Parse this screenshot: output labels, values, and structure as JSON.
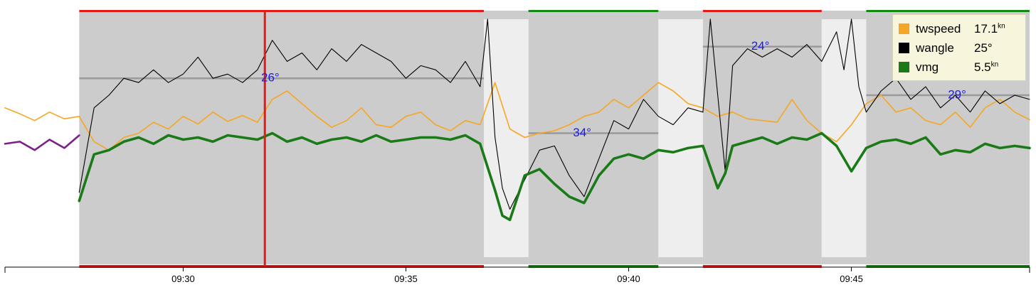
{
  "chart_data": {
    "type": "line",
    "x_axis": {
      "range": [
        "09:26:00",
        "09:49:00"
      ],
      "ticks": [
        "09:30",
        "09:35",
        "09:40",
        "09:45"
      ]
    },
    "grid": false,
    "legend_position": "top-right",
    "series": [
      {
        "name": "twspeed",
        "current_value": "17.1",
        "unit": "kn",
        "color": "#f5a623",
        "y_range": [
          0,
          30
        ],
        "points": [
          [
            "09:26:00",
            18.5
          ],
          [
            "09:26:20",
            17.8
          ],
          [
            "09:26:40",
            17.0
          ],
          [
            "09:27:00",
            18.0
          ],
          [
            "09:27:20",
            17.2
          ],
          [
            "09:27:40",
            17.5
          ],
          [
            "09:28:00",
            14.5
          ],
          [
            "09:28:20",
            13.5
          ],
          [
            "09:28:40",
            15.0
          ],
          [
            "09:29:00",
            15.5
          ],
          [
            "09:29:20",
            16.8
          ],
          [
            "09:29:40",
            16.0
          ],
          [
            "09:30:00",
            17.5
          ],
          [
            "09:30:20",
            16.6
          ],
          [
            "09:30:40",
            18.0
          ],
          [
            "09:31:00",
            16.9
          ],
          [
            "09:31:20",
            17.6
          ],
          [
            "09:31:40",
            16.8
          ],
          [
            "09:32:00",
            19.5
          ],
          [
            "09:32:20",
            20.5
          ],
          [
            "09:32:40",
            19.0
          ],
          [
            "09:33:00",
            17.5
          ],
          [
            "09:33:20",
            16.2
          ],
          [
            "09:33:40",
            17.0
          ],
          [
            "09:34:00",
            18.5
          ],
          [
            "09:34:20",
            16.5
          ],
          [
            "09:34:40",
            16.2
          ],
          [
            "09:35:00",
            17.5
          ],
          [
            "09:35:20",
            18.0
          ],
          [
            "09:35:40",
            16.5
          ],
          [
            "09:36:00",
            15.8
          ],
          [
            "09:36:20",
            17.0
          ],
          [
            "09:36:40",
            16.5
          ],
          [
            "09:37:00",
            21.5
          ],
          [
            "09:37:20",
            16.0
          ],
          [
            "09:37:40",
            15.0
          ],
          [
            "09:38:00",
            15.5
          ],
          [
            "09:38:20",
            15.8
          ],
          [
            "09:38:40",
            16.5
          ],
          [
            "09:39:00",
            17.5
          ],
          [
            "09:39:20",
            18.0
          ],
          [
            "09:39:40",
            19.5
          ],
          [
            "09:40:00",
            18.5
          ],
          [
            "09:40:20",
            20.0
          ],
          [
            "09:40:40",
            21.5
          ],
          [
            "09:41:00",
            20.5
          ],
          [
            "09:41:20",
            19.0
          ],
          [
            "09:41:40",
            18.5
          ],
          [
            "09:42:00",
            17.5
          ],
          [
            "09:42:20",
            18.0
          ],
          [
            "09:42:40",
            17.2
          ],
          [
            "09:43:00",
            17.0
          ],
          [
            "09:43:20",
            16.8
          ],
          [
            "09:43:40",
            19.5
          ],
          [
            "09:44:00",
            17.0
          ],
          [
            "09:44:20",
            15.5
          ],
          [
            "09:44:40",
            14.5
          ],
          [
            "09:45:00",
            16.5
          ],
          [
            "09:45:20",
            19.0
          ],
          [
            "09:45:40",
            20.0
          ],
          [
            "09:46:00",
            18.0
          ],
          [
            "09:46:20",
            18.5
          ],
          [
            "09:46:40",
            17.0
          ],
          [
            "09:47:00",
            16.5
          ],
          [
            "09:47:20",
            18.0
          ],
          [
            "09:47:40",
            16.2
          ],
          [
            "09:48:00",
            18.5
          ],
          [
            "09:48:20",
            19.5
          ],
          [
            "09:48:40",
            18.0
          ],
          [
            "09:49:00",
            17.1
          ]
        ]
      },
      {
        "name": "wangle",
        "current_value": "25°",
        "unit": "",
        "color": "#000000",
        "y_range": [
          0,
          60
        ],
        "points": [
          [
            "09:27:40",
            17.0
          ],
          [
            "09:28:00",
            37.0
          ],
          [
            "09:28:20",
            40.0
          ],
          [
            "09:28:40",
            44.0
          ],
          [
            "09:29:00",
            43.0
          ],
          [
            "09:29:20",
            46.0
          ],
          [
            "09:29:40",
            43.0
          ],
          [
            "09:30:00",
            45.0
          ],
          [
            "09:30:20",
            49.0
          ],
          [
            "09:30:40",
            44.0
          ],
          [
            "09:31:00",
            45.0
          ],
          [
            "09:31:20",
            43.0
          ],
          [
            "09:31:40",
            46.0
          ],
          [
            "09:32:00",
            53.0
          ],
          [
            "09:32:20",
            48.0
          ],
          [
            "09:32:40",
            50.0
          ],
          [
            "09:33:00",
            46.0
          ],
          [
            "09:33:20",
            51.0
          ],
          [
            "09:33:40",
            48.0
          ],
          [
            "09:34:00",
            52.0
          ],
          [
            "09:34:20",
            50.0
          ],
          [
            "09:34:40",
            48.0
          ],
          [
            "09:35:00",
            44.0
          ],
          [
            "09:35:20",
            47.0
          ],
          [
            "09:35:40",
            46.0
          ],
          [
            "09:36:00",
            43.0
          ],
          [
            "09:36:20",
            48.0
          ],
          [
            "09:36:40",
            42.0
          ],
          [
            "09:36:50",
            58.0
          ],
          [
            "09:37:00",
            30.0
          ],
          [
            "09:37:10",
            18.0
          ],
          [
            "09:37:20",
            13.0
          ],
          [
            "09:37:40",
            20.0
          ],
          [
            "09:38:00",
            27.0
          ],
          [
            "09:38:20",
            28.0
          ],
          [
            "09:38:40",
            21.0
          ],
          [
            "09:39:00",
            16.0
          ],
          [
            "09:39:20",
            25.0
          ],
          [
            "09:39:40",
            34.0
          ],
          [
            "09:40:00",
            32.0
          ],
          [
            "09:40:20",
            39.0
          ],
          [
            "09:40:40",
            35.0
          ],
          [
            "09:41:00",
            33.0
          ],
          [
            "09:41:20",
            37.0
          ],
          [
            "09:41:40",
            36.0
          ],
          [
            "09:41:50",
            58.0
          ],
          [
            "09:42:00",
            40.0
          ],
          [
            "09:42:10",
            22.0
          ],
          [
            "09:42:20",
            47.0
          ],
          [
            "09:42:40",
            51.0
          ],
          [
            "09:43:00",
            49.0
          ],
          [
            "09:43:20",
            51.0
          ],
          [
            "09:43:40",
            49.0
          ],
          [
            "09:44:00",
            52.0
          ],
          [
            "09:44:20",
            48.0
          ],
          [
            "09:44:40",
            55.0
          ],
          [
            "09:44:50",
            46.0
          ],
          [
            "09:45:00",
            58.0
          ],
          [
            "09:45:10",
            42.0
          ],
          [
            "09:45:20",
            36.0
          ],
          [
            "09:45:40",
            41.0
          ],
          [
            "09:46:00",
            44.0
          ],
          [
            "09:46:20",
            39.0
          ],
          [
            "09:46:40",
            42.0
          ],
          [
            "09:47:00",
            37.0
          ],
          [
            "09:47:20",
            40.0
          ],
          [
            "09:47:40",
            36.0
          ],
          [
            "09:48:00",
            41.0
          ],
          [
            "09:48:20",
            38.0
          ],
          [
            "09:48:40",
            40.0
          ],
          [
            "09:49:00",
            39.0
          ]
        ]
      },
      {
        "name": "vmg",
        "current_value": "5.5",
        "unit": "kn",
        "color": "#1a7a17",
        "y_range": [
          0,
          12
        ],
        "points": [
          [
            "09:27:40",
            3.0
          ],
          [
            "09:28:00",
            5.2
          ],
          [
            "09:28:20",
            5.4
          ],
          [
            "09:28:40",
            5.8
          ],
          [
            "09:29:00",
            6.0
          ],
          [
            "09:29:20",
            5.7
          ],
          [
            "09:29:40",
            6.1
          ],
          [
            "09:30:00",
            5.9
          ],
          [
            "09:30:20",
            6.0
          ],
          [
            "09:30:40",
            5.8
          ],
          [
            "09:31:00",
            6.1
          ],
          [
            "09:31:20",
            6.0
          ],
          [
            "09:31:40",
            5.9
          ],
          [
            "09:32:00",
            6.2
          ],
          [
            "09:32:20",
            5.8
          ],
          [
            "09:32:40",
            6.0
          ],
          [
            "09:33:00",
            5.7
          ],
          [
            "09:33:20",
            5.9
          ],
          [
            "09:33:40",
            6.0
          ],
          [
            "09:34:00",
            5.8
          ],
          [
            "09:34:20",
            6.1
          ],
          [
            "09:34:40",
            5.8
          ],
          [
            "09:35:00",
            5.9
          ],
          [
            "09:35:20",
            6.0
          ],
          [
            "09:35:40",
            6.0
          ],
          [
            "09:36:00",
            5.9
          ],
          [
            "09:36:20",
            6.1
          ],
          [
            "09:36:40",
            5.7
          ],
          [
            "09:37:00",
            3.5
          ],
          [
            "09:37:10",
            2.3
          ],
          [
            "09:37:20",
            2.1
          ],
          [
            "09:37:40",
            4.2
          ],
          [
            "09:38:00",
            4.5
          ],
          [
            "09:38:20",
            3.8
          ],
          [
            "09:38:40",
            3.2
          ],
          [
            "09:39:00",
            2.9
          ],
          [
            "09:39:20",
            4.2
          ],
          [
            "09:39:40",
            5.0
          ],
          [
            "09:40:00",
            5.2
          ],
          [
            "09:40:20",
            5.0
          ],
          [
            "09:40:40",
            5.4
          ],
          [
            "09:41:00",
            5.3
          ],
          [
            "09:41:20",
            5.5
          ],
          [
            "09:41:40",
            5.6
          ],
          [
            "09:42:00",
            3.6
          ],
          [
            "09:42:10",
            4.3
          ],
          [
            "09:42:20",
            5.6
          ],
          [
            "09:42:40",
            5.8
          ],
          [
            "09:43:00",
            6.0
          ],
          [
            "09:43:20",
            5.7
          ],
          [
            "09:43:40",
            6.0
          ],
          [
            "09:44:00",
            5.9
          ],
          [
            "09:44:20",
            6.2
          ],
          [
            "09:44:40",
            5.6
          ],
          [
            "09:45:00",
            4.4
          ],
          [
            "09:45:20",
            5.5
          ],
          [
            "09:45:40",
            5.8
          ],
          [
            "09:46:00",
            5.9
          ],
          [
            "09:46:20",
            5.7
          ],
          [
            "09:46:40",
            6.0
          ],
          [
            "09:47:00",
            5.2
          ],
          [
            "09:47:20",
            5.4
          ],
          [
            "09:47:40",
            5.3
          ],
          [
            "09:48:00",
            5.7
          ],
          [
            "09:48:20",
            5.5
          ],
          [
            "09:48:40",
            5.6
          ],
          [
            "09:49:00",
            5.5
          ]
        ]
      },
      {
        "name": "",
        "color": "#7d1f8a",
        "y_range": [
          0,
          12
        ],
        "points": [
          [
            "09:26:00",
            5.7
          ],
          [
            "09:26:20",
            5.8
          ],
          [
            "09:26:40",
            5.4
          ],
          [
            "09:27:00",
            5.9
          ],
          [
            "09:27:20",
            5.5
          ],
          [
            "09:27:40",
            6.1
          ]
        ]
      }
    ],
    "legs": [
      {
        "start": "09:27:40",
        "end": "09:36:45",
        "tack": "port",
        "bar_color": "#e31a1c"
      },
      {
        "start": "09:37:45",
        "end": "09:40:40",
        "tack": "starboard",
        "bar_color": "#128a12"
      },
      {
        "start": "09:41:40",
        "end": "09:44:20",
        "tack": "port",
        "bar_color": "#e31a1c"
      },
      {
        "start": "09:45:20",
        "end": "09:49:00",
        "tack": "starboard",
        "bar_color": "#128a12"
      }
    ],
    "maneuvers": [
      {
        "start": "09:36:45",
        "end": "09:37:45"
      },
      {
        "start": "09:40:40",
        "end": "09:41:40"
      },
      {
        "start": "09:44:20",
        "end": "09:45:20"
      }
    ],
    "average_angles": [
      {
        "label": "26°",
        "value": 44.0,
        "start": "09:27:40",
        "end": "09:36:45",
        "label_time": "09:31:45"
      },
      {
        "label": "34°",
        "value": 31.0,
        "start": "09:37:45",
        "end": "09:40:40",
        "label_time": "09:38:45"
      },
      {
        "label": "24°",
        "value": 51.5,
        "start": "09:41:40",
        "end": "09:44:20",
        "label_time": "09:42:45"
      },
      {
        "label": "29°",
        "value": 40.0,
        "start": "09:45:20",
        "end": "09:49:00",
        "label_time": "09:47:10"
      }
    ],
    "cursor": {
      "time": "09:31:50",
      "color": "#e31a1c"
    },
    "colors": {
      "leg_background": "#cccccc",
      "maneuver_background": "#eeeeee",
      "average_line": "#9a9a9a",
      "angle_label": "#1a1aee"
    }
  },
  "legend": {
    "items": [
      {
        "name": "twspeed",
        "value": "17.1",
        "unit": "kn",
        "color": "#f5a623"
      },
      {
        "name": "wangle",
        "value": "25°",
        "unit": "",
        "color": "#000000"
      },
      {
        "name": "vmg",
        "value": "5.5",
        "unit": "kn",
        "color": "#1a7a17"
      }
    ]
  }
}
